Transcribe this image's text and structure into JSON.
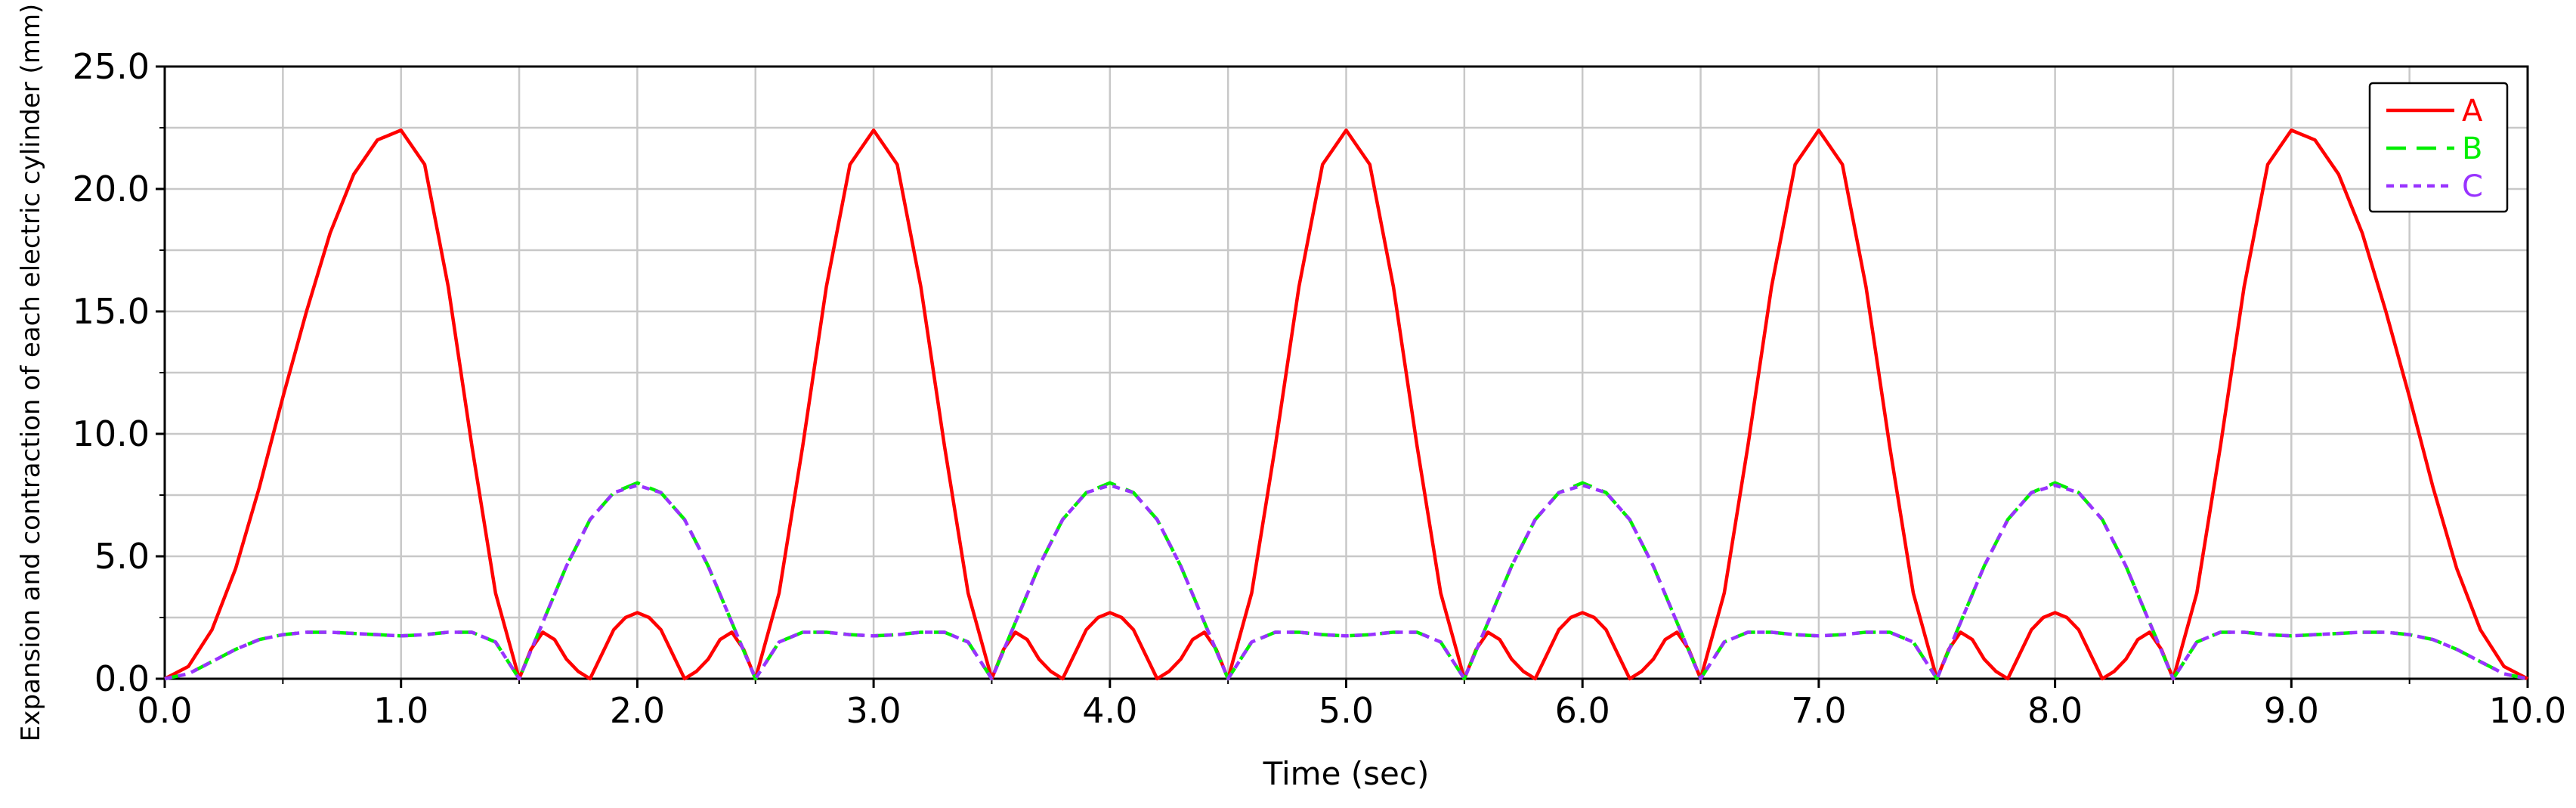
{
  "chart_data": {
    "type": "line",
    "title": "",
    "xlabel": "Time (sec)",
    "ylabel": "Expansion and contraction of each electric cylinder (mm)",
    "xlim": [
      0,
      10
    ],
    "ylim": [
      0,
      25
    ],
    "grid": true,
    "legend_position": "top-right",
    "x_ticks": [
      0,
      1,
      2,
      3,
      4,
      5,
      6,
      7,
      8,
      9,
      10
    ],
    "x_tick_labels": [
      "0.0",
      "1.0",
      "2.0",
      "3.0",
      "4.0",
      "5.0",
      "6.0",
      "7.0",
      "8.0",
      "9.0",
      "10.0"
    ],
    "y_ticks": [
      0,
      5,
      10,
      15,
      20,
      25
    ],
    "y_tick_labels": [
      "0.0",
      "5.0",
      "10.0",
      "15.0",
      "20.0",
      "25.0"
    ],
    "series": [
      {
        "name": "A",
        "color": "#ff0000",
        "dash": "solid",
        "x": [
          0,
          0.1,
          0.2,
          0.3,
          0.4,
          0.5,
          0.6,
          0.7,
          0.8,
          0.9,
          1.0,
          1.1,
          1.2,
          1.3,
          1.4,
          1.5,
          1.55,
          1.6,
          1.65,
          1.7,
          1.75,
          1.8,
          1.85,
          1.9,
          1.95,
          2.0,
          2.05,
          2.1,
          2.15,
          2.2,
          2.25,
          2.3,
          2.35,
          2.4,
          2.45,
          2.5,
          2.6,
          2.7,
          2.8,
          2.9,
          3.0,
          3.1,
          3.2,
          3.3,
          3.4,
          3.5,
          3.55,
          3.6,
          3.65,
          3.7,
          3.75,
          3.8,
          3.85,
          3.9,
          3.95,
          4.0,
          4.05,
          4.1,
          4.15,
          4.2,
          4.25,
          4.3,
          4.35,
          4.4,
          4.45,
          4.5,
          4.6,
          4.7,
          4.8,
          4.9,
          5.0,
          5.1,
          5.2,
          5.3,
          5.4,
          5.5,
          5.55,
          5.6,
          5.65,
          5.7,
          5.75,
          5.8,
          5.85,
          5.9,
          5.95,
          6.0,
          6.05,
          6.1,
          6.15,
          6.2,
          6.25,
          6.3,
          6.35,
          6.4,
          6.45,
          6.5,
          6.6,
          6.7,
          6.8,
          6.9,
          7.0,
          7.1,
          7.2,
          7.3,
          7.4,
          7.5,
          7.55,
          7.6,
          7.65,
          7.7,
          7.75,
          7.8,
          7.85,
          7.9,
          7.95,
          8.0,
          8.05,
          8.1,
          8.15,
          8.2,
          8.25,
          8.3,
          8.35,
          8.4,
          8.45,
          8.5,
          8.6,
          8.7,
          8.8,
          8.9,
          9.0,
          9.1,
          9.2,
          9.3,
          9.4,
          9.5,
          9.6,
          9.7,
          9.8,
          9.9,
          10.0
        ],
        "y": [
          0,
          0.5,
          2.0,
          4.5,
          7.8,
          11.5,
          15.0,
          18.2,
          20.6,
          22.0,
          22.4,
          21.0,
          16.0,
          9.5,
          3.5,
          0,
          1.2,
          1.9,
          1.6,
          0.8,
          0.3,
          0,
          1.0,
          2.0,
          2.5,
          2.7,
          2.5,
          2.0,
          1.0,
          0,
          0.3,
          0.8,
          1.6,
          1.9,
          1.2,
          0,
          3.5,
          9.5,
          16.0,
          21.0,
          22.4,
          21.0,
          16.0,
          9.5,
          3.5,
          0,
          1.2,
          1.9,
          1.6,
          0.8,
          0.3,
          0,
          1.0,
          2.0,
          2.5,
          2.7,
          2.5,
          2.0,
          1.0,
          0,
          0.3,
          0.8,
          1.6,
          1.9,
          1.2,
          0,
          3.5,
          9.5,
          16.0,
          21.0,
          22.4,
          21.0,
          16.0,
          9.5,
          3.5,
          0,
          1.2,
          1.9,
          1.6,
          0.8,
          0.3,
          0,
          1.0,
          2.0,
          2.5,
          2.7,
          2.5,
          2.0,
          1.0,
          0,
          0.3,
          0.8,
          1.6,
          1.9,
          1.2,
          0,
          3.5,
          9.5,
          16.0,
          21.0,
          22.4,
          21.0,
          16.0,
          9.5,
          3.5,
          0,
          1.2,
          1.9,
          1.6,
          0.8,
          0.3,
          0,
          1.0,
          2.0,
          2.5,
          2.7,
          2.5,
          2.0,
          1.0,
          0,
          0.3,
          0.8,
          1.6,
          1.9,
          1.2,
          0,
          3.5,
          9.5,
          16.0,
          21.0,
          22.4,
          22.0,
          20.6,
          18.2,
          15.0,
          11.5,
          7.8,
          4.5,
          2.0,
          0.5,
          0
        ]
      },
      {
        "name": "B",
        "color": "#00ee00",
        "dash": "dashed",
        "x": [
          0,
          0.1,
          0.2,
          0.3,
          0.4,
          0.5,
          0.6,
          0.7,
          0.8,
          0.9,
          1.0,
          1.1,
          1.2,
          1.3,
          1.4,
          1.5,
          1.6,
          1.7,
          1.8,
          1.9,
          2.0,
          2.1,
          2.2,
          2.3,
          2.4,
          2.5,
          2.6,
          2.7,
          2.8,
          2.9,
          3.0,
          3.1,
          3.2,
          3.3,
          3.4,
          3.5,
          3.6,
          3.7,
          3.8,
          3.9,
          4.0,
          4.1,
          4.2,
          4.3,
          4.4,
          4.5,
          4.6,
          4.7,
          4.8,
          4.9,
          5.0,
          5.1,
          5.2,
          5.3,
          5.4,
          5.5,
          5.6,
          5.7,
          5.8,
          5.9,
          6.0,
          6.1,
          6.2,
          6.3,
          6.4,
          6.5,
          6.6,
          6.7,
          6.8,
          6.9,
          7.0,
          7.1,
          7.2,
          7.3,
          7.4,
          7.5,
          7.6,
          7.7,
          7.8,
          7.9,
          8.0,
          8.1,
          8.2,
          8.3,
          8.4,
          8.5,
          8.6,
          8.7,
          8.8,
          8.9,
          9.0,
          9.1,
          9.2,
          9.3,
          9.4,
          9.5,
          9.6,
          9.7,
          9.8,
          9.9,
          10.0
        ],
        "y": [
          0,
          0.2,
          0.7,
          1.2,
          1.6,
          1.8,
          1.9,
          1.9,
          1.85,
          1.8,
          1.75,
          1.8,
          1.9,
          1.9,
          1.5,
          0,
          2.3,
          4.6,
          6.5,
          7.6,
          8.0,
          7.6,
          6.5,
          4.6,
          2.3,
          0,
          1.5,
          1.9,
          1.9,
          1.8,
          1.75,
          1.8,
          1.9,
          1.9,
          1.5,
          0,
          2.3,
          4.6,
          6.5,
          7.6,
          8.0,
          7.6,
          6.5,
          4.6,
          2.3,
          0,
          1.5,
          1.9,
          1.9,
          1.8,
          1.75,
          1.8,
          1.9,
          1.9,
          1.5,
          0,
          2.3,
          4.6,
          6.5,
          7.6,
          8.0,
          7.6,
          6.5,
          4.6,
          2.3,
          0,
          1.5,
          1.9,
          1.9,
          1.8,
          1.75,
          1.8,
          1.9,
          1.9,
          1.5,
          0,
          2.3,
          4.6,
          6.5,
          7.6,
          8.0,
          7.6,
          6.5,
          4.6,
          2.3,
          0,
          1.5,
          1.9,
          1.9,
          1.8,
          1.75,
          1.8,
          1.85,
          1.9,
          1.9,
          1.8,
          1.6,
          1.2,
          0.7,
          0.2,
          0
        ]
      },
      {
        "name": "C",
        "color": "#9933ff",
        "dash": "dotted",
        "x": [
          0,
          0.1,
          0.2,
          0.3,
          0.4,
          0.5,
          0.6,
          0.7,
          0.8,
          0.9,
          1.0,
          1.1,
          1.2,
          1.3,
          1.4,
          1.5,
          1.6,
          1.7,
          1.8,
          1.9,
          2.0,
          2.1,
          2.2,
          2.3,
          2.4,
          2.5,
          2.6,
          2.7,
          2.8,
          2.9,
          3.0,
          3.1,
          3.2,
          3.3,
          3.4,
          3.5,
          3.6,
          3.7,
          3.8,
          3.9,
          4.0,
          4.1,
          4.2,
          4.3,
          4.4,
          4.5,
          4.6,
          4.7,
          4.8,
          4.9,
          5.0,
          5.1,
          5.2,
          5.3,
          5.4,
          5.5,
          5.6,
          5.7,
          5.8,
          5.9,
          6.0,
          6.1,
          6.2,
          6.3,
          6.4,
          6.5,
          6.6,
          6.7,
          6.8,
          6.9,
          7.0,
          7.1,
          7.2,
          7.3,
          7.4,
          7.5,
          7.6,
          7.7,
          7.8,
          7.9,
          8.0,
          8.1,
          8.2,
          8.3,
          8.4,
          8.5,
          8.6,
          8.7,
          8.8,
          8.9,
          9.0,
          9.1,
          9.2,
          9.3,
          9.4,
          9.5,
          9.6,
          9.7,
          9.8,
          9.9,
          10.0
        ],
        "y": [
          0,
          0.2,
          0.7,
          1.2,
          1.6,
          1.8,
          1.9,
          1.9,
          1.85,
          1.8,
          1.75,
          1.8,
          1.9,
          1.9,
          1.5,
          0,
          2.3,
          4.6,
          6.5,
          7.6,
          7.9,
          7.6,
          6.5,
          4.6,
          2.3,
          0,
          1.5,
          1.9,
          1.9,
          1.8,
          1.75,
          1.8,
          1.9,
          1.9,
          1.5,
          0,
          2.3,
          4.6,
          6.5,
          7.6,
          7.9,
          7.6,
          6.5,
          4.6,
          2.3,
          0,
          1.5,
          1.9,
          1.9,
          1.8,
          1.75,
          1.8,
          1.9,
          1.9,
          1.5,
          0,
          2.3,
          4.6,
          6.5,
          7.6,
          7.9,
          7.6,
          6.5,
          4.6,
          2.3,
          0,
          1.5,
          1.9,
          1.9,
          1.8,
          1.75,
          1.8,
          1.9,
          1.9,
          1.5,
          0,
          2.3,
          4.6,
          6.5,
          7.6,
          7.9,
          7.6,
          6.5,
          4.6,
          2.3,
          0,
          1.5,
          1.9,
          1.9,
          1.8,
          1.75,
          1.8,
          1.85,
          1.9,
          1.9,
          1.8,
          1.6,
          1.2,
          0.7,
          0.2,
          0
        ]
      }
    ]
  }
}
